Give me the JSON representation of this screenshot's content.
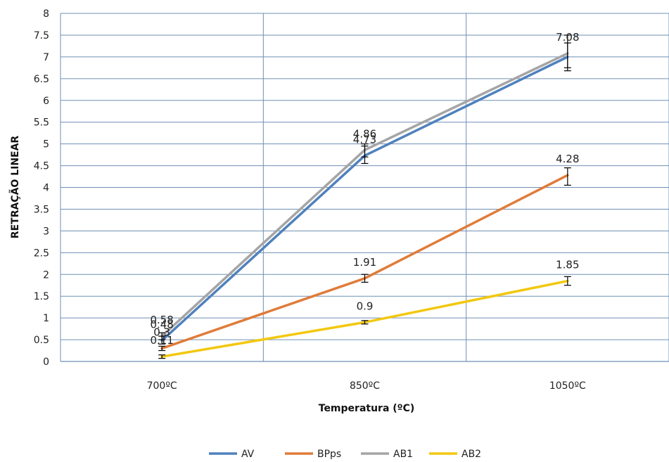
{
  "chart_data": {
    "type": "line",
    "categories": [
      "700ºC",
      "850ºC",
      "1050ºC"
    ],
    "xlabel": "Temperatura (ºC)",
    "ylabel": "RETRAÇÃO LINEAR",
    "ylim": [
      0,
      8
    ],
    "ytick_step": 0.5,
    "yticks": [
      "0",
      "0.5",
      "1",
      "1.5",
      "2",
      "2.5",
      "3",
      "3.5",
      "4",
      "4.5",
      "5",
      "5.5",
      "6",
      "6.5",
      "7",
      "7.5",
      "8"
    ],
    "grid": true,
    "legend_position": "bottom",
    "series": [
      {
        "name": "AV",
        "color": "#4F81BD",
        "values": [
          0.48,
          4.73,
          7.0
        ],
        "labels": [
          "0.48",
          "4.73",
          ""
        ],
        "errors": [
          [
            0.4,
            0.58
          ],
          [
            4.55,
            4.95
          ],
          [
            6.68,
            7.32
          ]
        ]
      },
      {
        "name": "BPps",
        "color": "#E07B39",
        "values": [
          0.3,
          1.91,
          4.28
        ],
        "labels": [
          "0.3",
          "1.91",
          "4.28"
        ],
        "errors": [
          [
            0.25,
            0.35
          ],
          [
            1.82,
            2.0
          ],
          [
            4.05,
            4.45
          ]
        ]
      },
      {
        "name": "AB1",
        "color": "#A5A5A5",
        "values": [
          0.58,
          4.86,
          7.08
        ],
        "labels": [
          "0.58",
          "4.86",
          "7.08"
        ],
        "errors": [
          [
            0.5,
            0.66
          ],
          [
            4.7,
            5.0
          ],
          [
            6.75,
            7.5
          ]
        ]
      },
      {
        "name": "AB2",
        "color": "#F2C80F",
        "values": [
          0.11,
          0.9,
          1.85
        ],
        "labels": [
          "0.11",
          "0.9",
          "1.85"
        ],
        "errors": [
          [
            0.07,
            0.15
          ],
          [
            0.86,
            0.94
          ],
          [
            1.75,
            1.95
          ]
        ]
      }
    ]
  }
}
